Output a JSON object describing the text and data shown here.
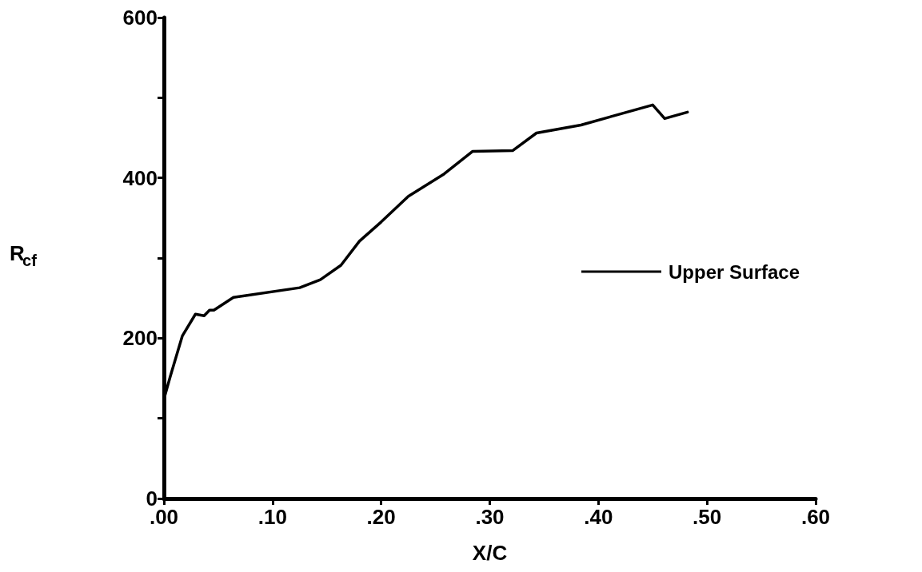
{
  "chart_data": {
    "type": "line",
    "xlabel": "X/C",
    "ylabel": "R$_{cf}$",
    "xlim": [
      0,
      0.6
    ],
    "ylim": [
      0,
      600
    ],
    "xticks": [
      {
        "value": 0,
        "label": ".00"
      },
      {
        "value": 0.1,
        "label": ".10"
      },
      {
        "value": 0.2,
        "label": ".20"
      },
      {
        "value": 0.3,
        "label": ".30"
      },
      {
        "value": 0.4,
        "label": ".40"
      },
      {
        "value": 0.5,
        "label": ".50"
      },
      {
        "value": 0.6,
        "label": ".60"
      }
    ],
    "yticks": [
      0,
      {
        "value": 100,
        "label": null
      },
      200,
      {
        "value": 300,
        "label": null
      },
      400,
      {
        "value": 500,
        "label": null
      },
      600
    ],
    "grid": false,
    "legend": "right",
    "marker": "none",
    "line_style": "solid",
    "series": [
      {
        "name": "Upper Surface",
        "color": "#000000",
        "x": [
          0,
          0.006,
          0.017,
          0.029,
          0.037,
          0.042,
          0.046,
          0.064,
          0.125,
          0.144,
          0.163,
          0.18,
          0.2,
          0.225,
          0.258,
          0.284,
          0.321,
          0.343,
          0.384,
          0.45,
          0.461,
          0.482
        ],
        "values": [
          124,
          153,
          203,
          230,
          228,
          235,
          235,
          251,
          263,
          273,
          291,
          321,
          345,
          377,
          405,
          433,
          434,
          456,
          466,
          491,
          474,
          482
        ]
      }
    ]
  }
}
